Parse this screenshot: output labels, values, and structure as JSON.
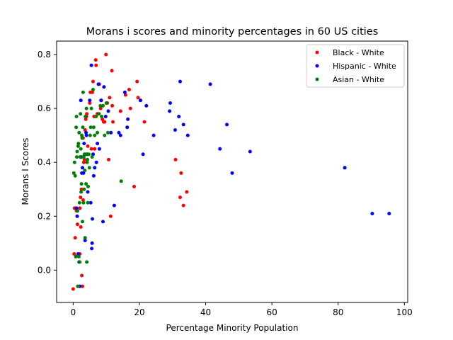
{
  "chart_data": {
    "type": "scatter",
    "title": "Morans i scores and minority percentages in 60 US cities",
    "xlabel": "Percentage Minority Population",
    "ylabel": "Morans I Scores",
    "xlim": [
      -5,
      101
    ],
    "ylim": [
      -0.12,
      0.85
    ],
    "xticks": [
      0,
      20,
      40,
      60,
      80,
      100
    ],
    "yticks": [
      0.0,
      0.2,
      0.4,
      0.6,
      0.8
    ],
    "grid": false,
    "legend_position": "top-right",
    "series": [
      {
        "name": "Black - White",
        "color": "#ff0000",
        "points": [
          [
            0.0,
            -0.07
          ],
          [
            0.3,
            0.06
          ],
          [
            0.6,
            0.12
          ],
          [
            1.0,
            0.22
          ],
          [
            1.3,
            0.17
          ],
          [
            2.0,
            0.23
          ],
          [
            2.3,
            0.16
          ],
          [
            2.6,
            -0.02
          ],
          [
            2.8,
            -0.06
          ],
          [
            2.5,
            0.3
          ],
          [
            3.0,
            0.26
          ],
          [
            3.2,
            0.4
          ],
          [
            3.4,
            0.41
          ],
          [
            3.0,
            0.49
          ],
          [
            3.6,
            0.52
          ],
          [
            4.0,
            0.57
          ],
          [
            4.1,
            0.58
          ],
          [
            4.4,
            0.46
          ],
          [
            5.0,
            0.62
          ],
          [
            5.2,
            0.66
          ],
          [
            5.8,
            0.66
          ],
          [
            6.0,
            0.7
          ],
          [
            6.3,
            0.57
          ],
          [
            6.8,
            0.78
          ],
          [
            6.9,
            0.76
          ],
          [
            7.3,
            0.58
          ],
          [
            7.9,
            0.69
          ],
          [
            8.3,
            0.6
          ],
          [
            8.8,
            0.56
          ],
          [
            9.2,
            0.55
          ],
          [
            9.5,
            0.55
          ],
          [
            9.9,
            0.8
          ],
          [
            10.3,
            0.62
          ],
          [
            10.7,
            0.41
          ],
          [
            11.0,
            0.64
          ],
          [
            11.3,
            0.2
          ],
          [
            11.7,
            0.74
          ],
          [
            11.8,
            0.61
          ],
          [
            14.3,
            0.59
          ],
          [
            15.8,
            0.65
          ],
          [
            16.9,
            0.67
          ],
          [
            17.3,
            0.6
          ],
          [
            18.4,
            0.31
          ],
          [
            19.3,
            0.7
          ],
          [
            19.6,
            0.64
          ],
          [
            20.3,
            0.63
          ],
          [
            21.5,
            0.55
          ],
          [
            30.9,
            0.41
          ],
          [
            32.3,
            0.27
          ],
          [
            32.6,
            0.36
          ],
          [
            33.3,
            0.24
          ],
          [
            34.3,
            0.29
          ],
          [
            0.4,
            0.23
          ],
          [
            2.0,
            0.06
          ],
          [
            5.5,
            0.45
          ],
          [
            8.5,
            0.63
          ],
          [
            12.0,
            0.55
          ],
          [
            3.8,
            0.56
          ],
          [
            2.2,
            0.27
          ],
          [
            6.5,
            0.45
          ]
        ]
      },
      {
        "name": "Hispanic - White",
        "color": "#0000ff",
        "points": [
          [
            1.2,
            0.2
          ],
          [
            1.5,
            0.06
          ],
          [
            1.8,
            0.03
          ],
          [
            2.0,
            -0.06
          ],
          [
            2.3,
            0.63
          ],
          [
            2.6,
            0.36
          ],
          [
            2.8,
            0.38
          ],
          [
            3.1,
            0.36
          ],
          [
            3.3,
            0.47
          ],
          [
            3.6,
            0.11
          ],
          [
            3.9,
            0.51
          ],
          [
            4.2,
            0.43
          ],
          [
            4.4,
            0.29
          ],
          [
            5.0,
            0.63
          ],
          [
            5.3,
            0.25
          ],
          [
            5.5,
            0.76
          ],
          [
            5.7,
            0.1
          ],
          [
            5.6,
            0.08
          ],
          [
            5.8,
            0.19
          ],
          [
            6.0,
            0.43
          ],
          [
            6.2,
            0.35
          ],
          [
            6.5,
            0.38
          ],
          [
            7.0,
            0.4
          ],
          [
            7.3,
            0.47
          ],
          [
            7.6,
            0.69
          ],
          [
            7.9,
            0.45
          ],
          [
            8.4,
            0.63
          ],
          [
            9.0,
            0.18
          ],
          [
            9.3,
            0.68
          ],
          [
            9.8,
            0.57
          ],
          [
            10.6,
            0.59
          ],
          [
            11.4,
            0.51
          ],
          [
            12.4,
            0.24
          ],
          [
            13.8,
            0.51
          ],
          [
            14.3,
            0.5
          ],
          [
            15.6,
            0.66
          ],
          [
            16.3,
            0.53
          ],
          [
            16.5,
            0.56
          ],
          [
            20.3,
            0.63
          ],
          [
            21.1,
            0.43
          ],
          [
            22.1,
            0.61
          ],
          [
            24.3,
            0.5
          ],
          [
            29.3,
            0.62
          ],
          [
            29.1,
            0.59
          ],
          [
            30.8,
            0.52
          ],
          [
            31.9,
            0.57
          ],
          [
            32.3,
            0.7
          ],
          [
            33.3,
            0.54
          ],
          [
            34.6,
            0.5
          ],
          [
            41.4,
            0.69
          ],
          [
            44.3,
            0.45
          ],
          [
            46.4,
            0.54
          ],
          [
            48.0,
            0.36
          ],
          [
            53.4,
            0.44
          ],
          [
            82.0,
            0.38
          ],
          [
            90.3,
            0.21
          ],
          [
            95.4,
            0.21
          ],
          [
            1.0,
            0.23
          ],
          [
            2.5,
            0.42
          ],
          [
            4.0,
            0.5
          ]
        ]
      },
      {
        "name": "Asian - White",
        "color": "#008000",
        "points": [
          [
            0.2,
            0.36
          ],
          [
            0.4,
            0.4
          ],
          [
            0.6,
            0.35
          ],
          [
            0.8,
            0.05
          ],
          [
            0.9,
            0.53
          ],
          [
            1.0,
            0.57
          ],
          [
            1.1,
            0.42
          ],
          [
            1.2,
            0.44
          ],
          [
            1.3,
            0.22
          ],
          [
            1.5,
            0.46
          ],
          [
            1.6,
            0.47
          ],
          [
            1.7,
            0.05
          ],
          [
            1.8,
            0.51
          ],
          [
            1.9,
            0.25
          ],
          [
            2.0,
            0.03
          ],
          [
            2.1,
            0.42
          ],
          [
            2.2,
            0.58
          ],
          [
            2.3,
            0.45
          ],
          [
            2.4,
            0.29
          ],
          [
            2.5,
            0.32
          ],
          [
            2.6,
            0.5
          ],
          [
            2.7,
            0.49
          ],
          [
            2.8,
            0.18
          ],
          [
            2.9,
            0.53
          ],
          [
            3.0,
            0.66
          ],
          [
            3.1,
            0.25
          ],
          [
            3.2,
            0.42
          ],
          [
            3.3,
            0.3
          ],
          [
            3.4,
            0.43
          ],
          [
            3.5,
            0.37
          ],
          [
            3.6,
            0.12
          ],
          [
            3.7,
            0.57
          ],
          [
            3.8,
            0.43
          ],
          [
            3.9,
            0.32
          ],
          [
            4.0,
            0.6
          ],
          [
            4.1,
            0.03
          ],
          [
            4.2,
            0.4
          ],
          [
            4.3,
            0.41
          ],
          [
            4.4,
            0.25
          ],
          [
            4.5,
            0.31
          ],
          [
            4.7,
            0.43
          ],
          [
            4.9,
            0.38
          ],
          [
            5.1,
            0.5
          ],
          [
            5.3,
            0.53
          ],
          [
            5.5,
            0.6
          ],
          [
            5.7,
            0.42
          ],
          [
            6.0,
            0.67
          ],
          [
            6.2,
            0.53
          ],
          [
            6.5,
            0.5
          ],
          [
            6.9,
            0.57
          ],
          [
            7.3,
            0.51
          ],
          [
            7.8,
            0.58
          ],
          [
            8.2,
            0.61
          ],
          [
            8.6,
            0.57
          ],
          [
            9.0,
            0.61
          ],
          [
            9.5,
            0.5
          ],
          [
            10.0,
            0.62
          ],
          [
            10.5,
            0.51
          ],
          [
            14.5,
            0.33
          ],
          [
            1.4,
            -0.06
          ]
        ]
      }
    ]
  }
}
